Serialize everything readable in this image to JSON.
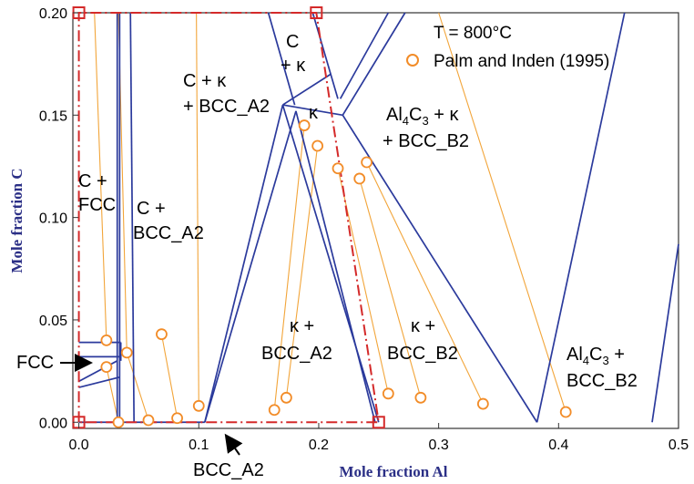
{
  "chart_data": {
    "type": "scatter",
    "title": "",
    "annotation_temperature": "T = 800°C",
    "xlabel": "Mole fraction Al",
    "ylabel": "Mole fraction C",
    "xlim": [
      -0.005,
      0.5
    ],
    "ylim": [
      -0.003,
      0.2
    ],
    "x_ticks": [
      "0.0",
      "0.1",
      "0.2",
      "0.3",
      "0.4",
      "0.5"
    ],
    "y_ticks": [
      "0.00",
      "0.05",
      "0.10",
      "0.15",
      "0.20"
    ],
    "legend": {
      "placement": "top-right",
      "entries": [
        {
          "name": "Palm and Inden (1995)",
          "marker": "open-circle",
          "color": "#f28c28"
        }
      ]
    },
    "colors": {
      "phase_boundary": "#2b3a9c",
      "tie_line": "#f2a53a",
      "marker": "#f28c28",
      "highlight_box": "#d42a2a"
    },
    "series": [
      {
        "name": "Palm and Inden (1995)",
        "points": [
          {
            "x": 0.023,
            "y": 0.04
          },
          {
            "x": 0.023,
            "y": 0.027
          },
          {
            "x": 0.033,
            "y": 0.0
          },
          {
            "x": 0.04,
            "y": 0.034
          },
          {
            "x": 0.058,
            "y": 0.001
          },
          {
            "x": 0.069,
            "y": 0.043
          },
          {
            "x": 0.082,
            "y": 0.002
          },
          {
            "x": 0.1,
            "y": 0.008
          },
          {
            "x": 0.163,
            "y": 0.006
          },
          {
            "x": 0.173,
            "y": 0.012
          },
          {
            "x": 0.188,
            "y": 0.145
          },
          {
            "x": 0.199,
            "y": 0.135
          },
          {
            "x": 0.216,
            "y": 0.124
          },
          {
            "x": 0.234,
            "y": 0.119
          },
          {
            "x": 0.24,
            "y": 0.127
          },
          {
            "x": 0.258,
            "y": 0.014
          },
          {
            "x": 0.285,
            "y": 0.012
          },
          {
            "x": 0.337,
            "y": 0.009
          },
          {
            "x": 0.406,
            "y": 0.005
          }
        ]
      }
    ],
    "tie_lines": [
      [
        [
          0.013,
          0.2
        ],
        [
          0.023,
          0.04
        ]
      ],
      [
        [
          0.023,
          0.027
        ],
        [
          0.033,
          0.0
        ]
      ],
      [
        [
          0.033,
          0.2
        ],
        [
          0.04,
          0.034
        ]
      ],
      [
        [
          0.04,
          0.034
        ],
        [
          0.058,
          0.001
        ]
      ],
      [
        [
          0.069,
          0.043
        ],
        [
          0.082,
          0.002
        ]
      ],
      [
        [
          0.098,
          0.2
        ],
        [
          0.1,
          0.008
        ]
      ],
      [
        [
          0.163,
          0.006
        ],
        [
          0.188,
          0.145
        ]
      ],
      [
        [
          0.173,
          0.012
        ],
        [
          0.199,
          0.135
        ]
      ],
      [
        [
          0.216,
          0.124
        ],
        [
          0.258,
          0.014
        ]
      ],
      [
        [
          0.234,
          0.119
        ],
        [
          0.285,
          0.012
        ]
      ],
      [
        [
          0.24,
          0.127
        ],
        [
          0.337,
          0.009
        ]
      ],
      [
        [
          0.3,
          0.2
        ],
        [
          0.406,
          0.005
        ]
      ]
    ],
    "phase_boundaries": [
      [
        [
          0.032,
          0.2
        ],
        [
          0.032,
          0.0
        ]
      ],
      [
        [
          0.034,
          0.2
        ],
        [
          0.034,
          0.0
        ]
      ],
      [
        [
          0.043,
          0.2
        ],
        [
          0.046,
          0.0
        ]
      ],
      [
        [
          0.0,
          0.039
        ],
        [
          0.035,
          0.039
        ]
      ],
      [
        [
          0.035,
          0.039
        ],
        [
          0.035,
          0.03
        ]
      ],
      [
        [
          0.0,
          0.032
        ],
        [
          0.035,
          0.032
        ]
      ],
      [
        [
          0.0,
          0.02
        ],
        [
          0.032,
          0.03
        ]
      ],
      [
        [
          0.0,
          0.017
        ],
        [
          0.034,
          0.022
        ]
      ],
      [
        [
          0.0,
          0.0
        ],
        [
          0.105,
          0.0
        ]
      ],
      [
        [
          0.105,
          0.0
        ],
        [
          0.17,
          0.155
        ]
      ],
      [
        [
          0.105,
          0.0
        ],
        [
          0.181,
          0.152
        ]
      ],
      [
        [
          0.158,
          0.2
        ],
        [
          0.18,
          0.155
        ]
      ],
      [
        [
          0.195,
          0.2
        ],
        [
          0.216,
          0.158
        ]
      ],
      [
        [
          0.17,
          0.155
        ],
        [
          0.25,
          0.0
        ]
      ],
      [
        [
          0.181,
          0.152
        ],
        [
          0.247,
          0.0
        ]
      ],
      [
        [
          0.17,
          0.155
        ],
        [
          0.22,
          0.15
        ]
      ],
      [
        [
          0.22,
          0.15
        ],
        [
          0.382,
          0.0
        ]
      ],
      [
        [
          0.218,
          0.158
        ],
        [
          0.258,
          0.2
        ]
      ],
      [
        [
          0.17,
          0.155
        ],
        [
          0.21,
          0.17
        ]
      ],
      [
        [
          0.22,
          0.15
        ],
        [
          0.272,
          0.2
        ]
      ],
      [
        [
          0.382,
          0.0
        ],
        [
          0.455,
          0.2
        ]
      ],
      [
        [
          0.478,
          0.0
        ],
        [
          0.5,
          0.087
        ]
      ]
    ],
    "highlight_region": {
      "corners": [
        [
          0.0,
          0.0
        ],
        [
          0.198,
          0.2
        ],
        [
          0.25,
          0.0
        ]
      ],
      "style": "dash-dot"
    },
    "region_labels": [
      {
        "key": "c_fcc",
        "lines": [
          "C +",
          "FCC"
        ]
      },
      {
        "key": "c_bcc_a2",
        "lines": [
          "C +",
          "BCC_A2"
        ]
      },
      {
        "key": "c_kappa_bcc",
        "lines": [
          "C + κ",
          "+ BCC_A2"
        ]
      },
      {
        "key": "c_kappa",
        "lines": [
          "C",
          "+ κ"
        ]
      },
      {
        "key": "kappa",
        "lines": [
          "κ"
        ]
      },
      {
        "key": "al4c3_kappa_b2",
        "lines": [
          "Al4C3 + κ",
          "+ BCC_B2"
        ]
      },
      {
        "key": "kappa_bcc_a2",
        "lines": [
          "κ +",
          "BCC_A2"
        ]
      },
      {
        "key": "kappa_bcc_b2",
        "lines": [
          "κ +",
          "BCC_B2"
        ]
      },
      {
        "key": "al4c3_b2",
        "lines": [
          "Al4C3 +",
          "BCC_B2"
        ]
      },
      {
        "key": "fcc",
        "lines": [
          "FCC"
        ]
      },
      {
        "key": "bcc_a2_arrow",
        "lines": [
          "BCC_A2"
        ]
      }
    ]
  }
}
